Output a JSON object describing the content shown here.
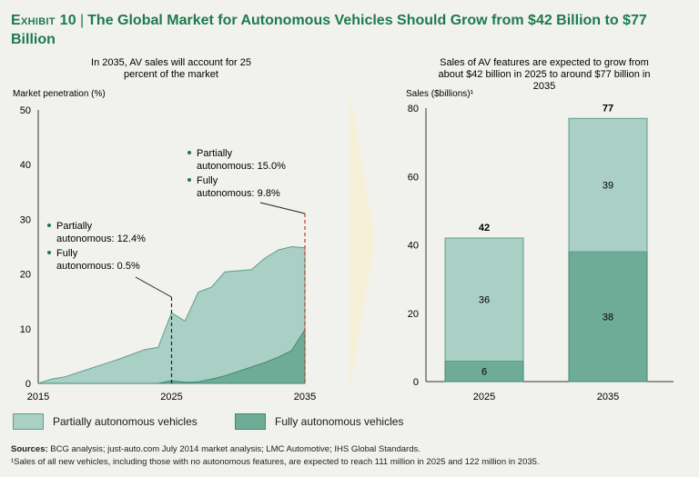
{
  "header": {
    "exhibit": "Exhibit 10",
    "title": "The Global Market for Autonomous Vehicles Should Grow from $42 Billion to $77 Billion"
  },
  "legend": {
    "partial": "Partially autonomous vehicles",
    "full": "Fully autonomous vehicles"
  },
  "colors": {
    "partial": "#aacfc4",
    "partial_stroke": "#5e9f8e",
    "full": "#6fac98",
    "full_stroke": "#3f8a72",
    "marker": "#c0392b",
    "arrow": "#f7f0d8",
    "title": "#1d7a4d"
  },
  "footer": {
    "sources_label": "Sources:",
    "sources_text": " BCG analysis; just-auto.com July 2014 market analysis; LMC Automotive; IHS Global Standards.",
    "note": "¹Sales of all new vehicles, including those with no autonomous features, are expected to reach 111 million in 2025 and 122 million in 2035."
  },
  "chart_data": [
    {
      "type": "area",
      "subtitle": "In 2035, AV sales will account for 25 percent of the market",
      "ylabel": "Market penetration (%)",
      "ylim": [
        0,
        50
      ],
      "yticks": [
        0,
        10,
        20,
        30,
        40,
        50
      ],
      "xlim": [
        2015,
        2035
      ],
      "xticks": [
        2015,
        2025,
        2035
      ],
      "series": [
        {
          "name": "Partially autonomous vehicles",
          "x": [
            2015,
            2016,
            2017,
            2018,
            2019,
            2020,
            2021,
            2022,
            2023,
            2024,
            2025,
            2026,
            2027,
            2028,
            2029,
            2030,
            2031,
            2032,
            2033,
            2034,
            2035
          ],
          "y": [
            0,
            0.8,
            1.2,
            2.0,
            2.8,
            3.6,
            4.4,
            5.3,
            6.2,
            6.6,
            12.9,
            11.4,
            16.7,
            17.6,
            20.4,
            20.6,
            20.8,
            22.9,
            24.4,
            25.0,
            24.8
          ],
          "total": true
        },
        {
          "name": "Fully autonomous vehicles",
          "x": [
            2015,
            2024,
            2025,
            2026,
            2027,
            2028,
            2029,
            2030,
            2031,
            2032,
            2033,
            2034,
            2035
          ],
          "y": [
            0,
            0,
            0.5,
            0.2,
            0.3,
            0.8,
            1.4,
            2.2,
            3.0,
            3.8,
            4.8,
            6.0,
            9.8
          ]
        }
      ],
      "annotations": [
        {
          "x": 2025,
          "lines": [
            [
              "Partially",
              "autonomous: 12.4%"
            ],
            [
              "Fully",
              "autonomous: 0.5%"
            ]
          ]
        },
        {
          "x": 2035,
          "lines": [
            [
              "Partially",
              "autonomous: 15.0%"
            ],
            [
              "Fully",
              "autonomous: 9.8%"
            ]
          ]
        }
      ]
    },
    {
      "type": "bar",
      "stacked": true,
      "subtitle": "Sales of AV features are expected to grow from about $42 billion in 2025 to around $77 billion in 2035",
      "ylabel": "Sales ($billions)¹",
      "ylim": [
        0,
        80
      ],
      "yticks": [
        0,
        20,
        40,
        60,
        80
      ],
      "categories": [
        "2025",
        "2035"
      ],
      "series": [
        {
          "name": "Fully autonomous vehicles",
          "values": [
            6,
            38
          ]
        },
        {
          "name": "Partially autonomous vehicles",
          "values": [
            36,
            39
          ]
        }
      ],
      "totals": [
        42,
        77
      ]
    }
  ]
}
